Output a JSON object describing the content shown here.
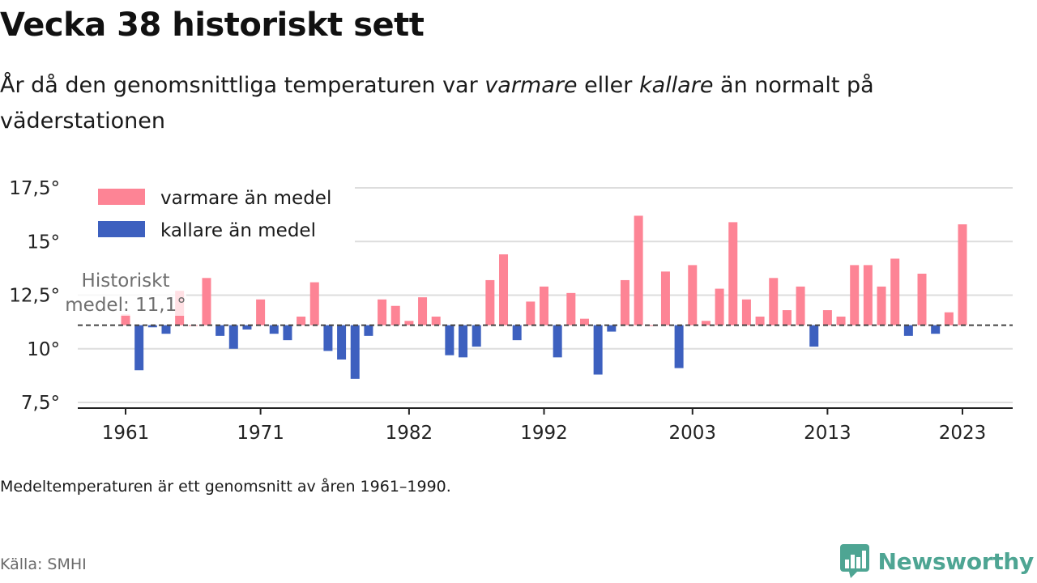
{
  "title": "Vecka 38 historiskt sett",
  "subtitle": {
    "part1": "År då den genomsnittliga temperaturen var ",
    "warm_word": "varmare",
    "part2": " eller ",
    "cold_word": "kallare",
    "part3": " än normalt på väderstationen"
  },
  "note": "Medeltemperaturen är ett genomsnitt av åren 1961–1990.",
  "source": "Källa: SMHI",
  "brand": {
    "name": "Newsworthy",
    "icon": "newsworthy-logo-icon",
    "color": "#4ea593"
  },
  "colors": {
    "warm": "#fd8495",
    "cold": "#3d60bf",
    "reference": "#444444",
    "grid": "#dddddd"
  },
  "chart_data": {
    "type": "bar",
    "x": [
      1961,
      1962,
      1963,
      1964,
      1965,
      1966,
      1967,
      1968,
      1969,
      1970,
      1971,
      1972,
      1973,
      1974,
      1975,
      1976,
      1977,
      1978,
      1979,
      1980,
      1981,
      1982,
      1983,
      1984,
      1985,
      1986,
      1987,
      1988,
      1989,
      1990,
      1991,
      1992,
      1993,
      1994,
      1995,
      1996,
      1997,
      1998,
      1999,
      2000,
      2001,
      2002,
      2003,
      2004,
      2005,
      2006,
      2007,
      2008,
      2009,
      2010,
      2011,
      2012,
      2013,
      2014,
      2015,
      2016,
      2017,
      2018,
      2019,
      2020,
      2021,
      2022,
      2023
    ],
    "values": [
      11.6,
      9.0,
      11.0,
      10.7,
      12.7,
      11.1,
      13.3,
      10.6,
      10.0,
      10.9,
      12.3,
      10.7,
      10.4,
      11.5,
      13.1,
      9.9,
      9.5,
      8.6,
      10.6,
      12.3,
      12.0,
      11.3,
      12.4,
      11.5,
      9.7,
      9.6,
      10.1,
      13.2,
      14.4,
      10.4,
      12.2,
      12.9,
      9.6,
      12.6,
      11.4,
      8.8,
      10.8,
      13.2,
      16.2,
      11.1,
      13.6,
      9.1,
      13.9,
      11.3,
      12.8,
      15.9,
      12.3,
      11.5,
      13.3,
      11.8,
      12.9,
      10.1,
      11.8,
      11.5,
      13.9,
      13.9,
      12.9,
      14.2,
      10.6,
      13.5,
      10.7,
      11.7,
      15.8
    ],
    "reference": 11.1,
    "reference_label_line1": "Historiskt",
    "reference_label_line2": "medel: 11,1°",
    "ylim": [
      7.5,
      17.5
    ],
    "yticks": [
      "7,5°",
      "10°",
      "12,5°",
      "15°",
      "17,5°"
    ],
    "ytick_values": [
      7.5,
      10,
      12.5,
      15,
      17.5
    ],
    "xticks": [
      "1961",
      "1971",
      "1982",
      "1992",
      "2003",
      "2013",
      "2023"
    ],
    "xtick_values": [
      1961,
      1971,
      1982,
      1992,
      2003,
      2013,
      2023
    ],
    "legend": [
      {
        "label": "varmare än medel",
        "key": "warm"
      },
      {
        "label": "kallare än medel",
        "key": "cold"
      }
    ],
    "legend_position": "top-left",
    "grid": true
  }
}
